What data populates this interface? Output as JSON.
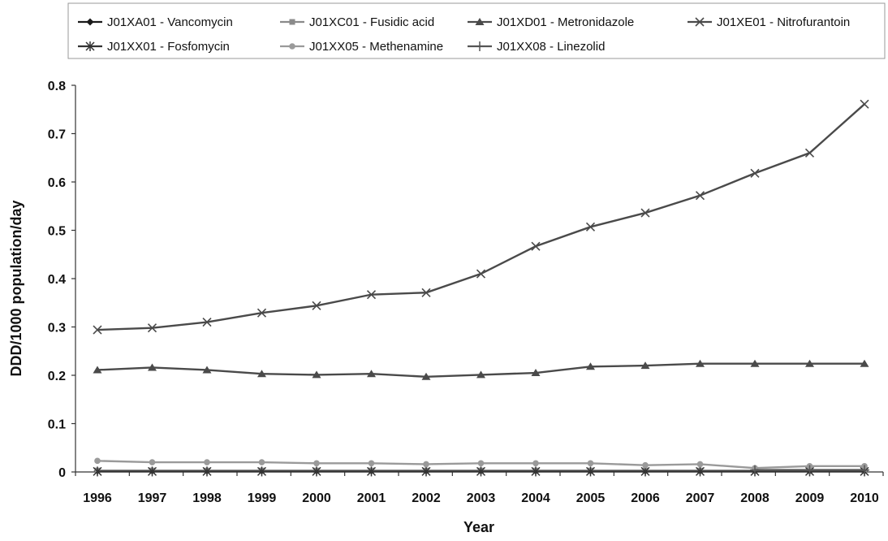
{
  "chart_data": {
    "type": "line",
    "title": "",
    "xlabel": "Year",
    "ylabel": "DDD/1000 population/day",
    "ylim": [
      0,
      0.8
    ],
    "yticks": [
      "0",
      "0.1",
      "0.2",
      "0.3",
      "0.4",
      "0.5",
      "0.6",
      "0.7",
      "0.8"
    ],
    "grid": false,
    "legend_position": "top",
    "x": [
      "1996",
      "1997",
      "1998",
      "1999",
      "2000",
      "2001",
      "2002",
      "2003",
      "2004",
      "2005",
      "2006",
      "2007",
      "2008",
      "2009",
      "2010"
    ],
    "series": [
      {
        "name": "J01XA01 - Vancomycin",
        "marker": "diamond",
        "color": "#1a1a1a",
        "values": [
          0.002,
          0.002,
          0.002,
          0.002,
          0.002,
          0.002,
          0.002,
          0.002,
          0.002,
          0.002,
          0.002,
          0.002,
          0.002,
          0.002,
          0.002
        ]
      },
      {
        "name": "J01XC01 - Fusidic acid",
        "marker": "square",
        "color": "#8a8a8a",
        "values": [
          0.003,
          0.003,
          0.003,
          0.003,
          0.003,
          0.003,
          0.003,
          0.003,
          0.003,
          0.003,
          0.003,
          0.003,
          0.003,
          0.003,
          0.003
        ]
      },
      {
        "name": "J01XD01 - Metronidazole",
        "marker": "triangle",
        "color": "#4a4a4a",
        "values": [
          0.211,
          0.216,
          0.211,
          0.203,
          0.201,
          0.203,
          0.197,
          0.201,
          0.205,
          0.218,
          0.22,
          0.224,
          0.224,
          0.224,
          0.224
        ]
      },
      {
        "name": "J01XE01 - Nitrofurantoin",
        "marker": "x",
        "color": "#4a4a4a",
        "values": [
          0.294,
          0.298,
          0.31,
          0.329,
          0.344,
          0.367,
          0.371,
          0.41,
          0.467,
          0.507,
          0.536,
          0.572,
          0.618,
          0.66,
          0.761
        ]
      },
      {
        "name": "J01XX01 - Fosfomycin",
        "marker": "star",
        "color": "#333333",
        "values": [
          0.001,
          0.001,
          0.001,
          0.001,
          0.001,
          0.001,
          0.001,
          0.001,
          0.001,
          0.001,
          0.001,
          0.001,
          0.001,
          0.001,
          0.001
        ]
      },
      {
        "name": "J01XX05 - Methenamine",
        "marker": "circle",
        "color": "#9a9a9a",
        "values": [
          0.023,
          0.02,
          0.02,
          0.02,
          0.018,
          0.018,
          0.016,
          0.018,
          0.018,
          0.018,
          0.014,
          0.016,
          0.008,
          0.012,
          0.012
        ]
      },
      {
        "name": "J01XX08 - Linezolid",
        "marker": "plus",
        "color": "#555555",
        "values": [
          null,
          null,
          null,
          null,
          null,
          null,
          null,
          null,
          null,
          null,
          null,
          null,
          0.004,
          0.004,
          0.004
        ]
      }
    ]
  }
}
